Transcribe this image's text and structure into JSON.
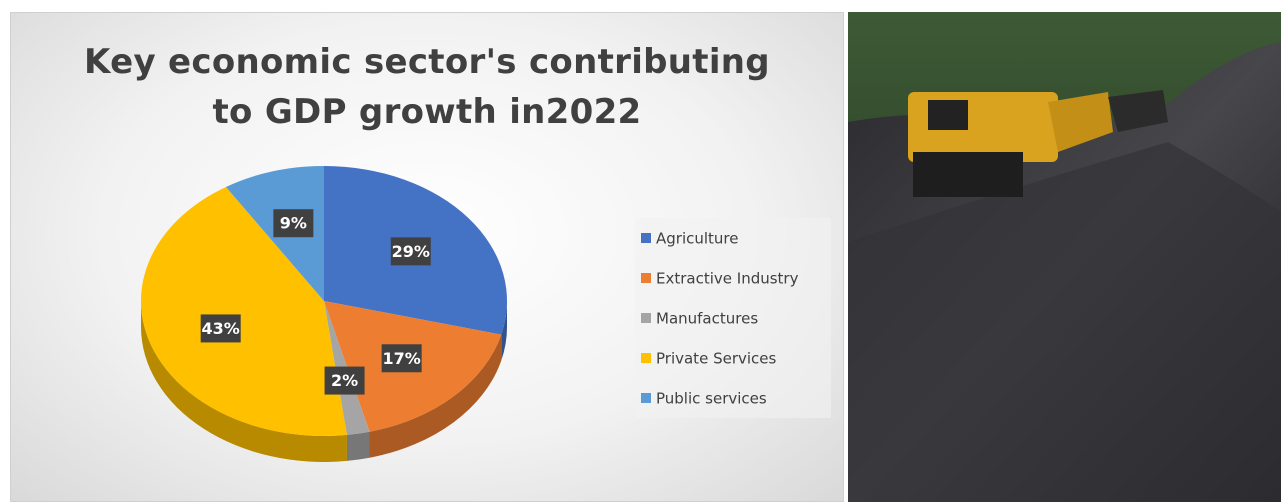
{
  "chart_data": {
    "type": "pie",
    "title": "Key economic sector's contributing to GDP growth in2022",
    "categories": [
      "Agriculture",
      "Extractive Industry",
      "Manufactures",
      "Private Services",
      "Public services"
    ],
    "values": [
      29,
      17,
      2,
      43,
      9
    ],
    "value_labels": [
      "29%",
      "17%",
      "2%",
      "43%",
      "9%"
    ],
    "colors": [
      "#4472c4",
      "#ed7d31",
      "#a5a5a5",
      "#ffc000",
      "#5b9bd5"
    ],
    "legend": "right"
  }
}
